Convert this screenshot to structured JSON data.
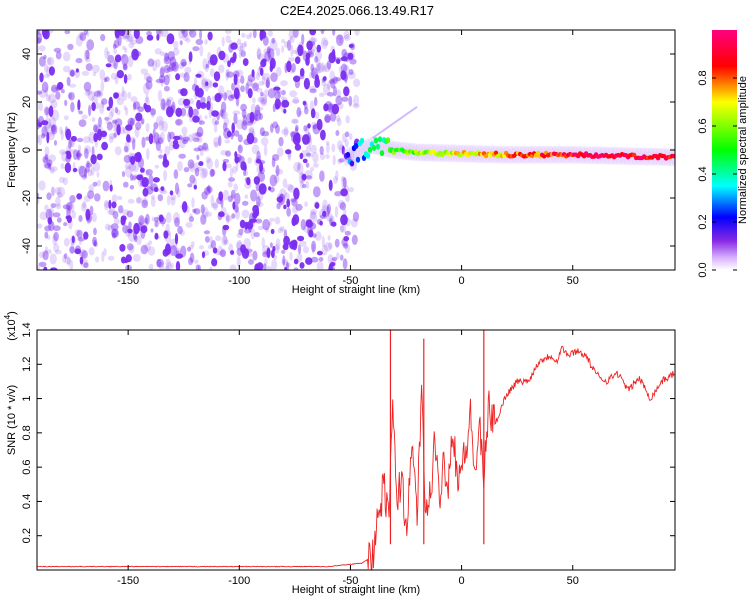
{
  "title": "C2E4.2025.066.13.49.R17",
  "chart_data": [
    {
      "type": "heatmap",
      "xlabel": "Height of straight line (km)",
      "ylabel": "Frequency (Hz)",
      "xlim": [
        -191,
        96
      ],
      "ylim": [
        -50,
        50
      ],
      "x_ticks": [
        -150,
        -100,
        -50,
        0,
        50
      ],
      "y_ticks": [
        -40,
        -20,
        0,
        20,
        40
      ],
      "colorbar": {
        "label": "Normalized spectral amplitude",
        "range": [
          0,
          1
        ],
        "ticks": [
          0.0,
          0.2,
          0.4,
          0.6,
          0.8
        ],
        "colors": [
          "#ffffff",
          "#8a2be2",
          "#0000ff",
          "#00ffff",
          "#00ff00",
          "#ffff00",
          "#ff0000",
          "#ff0080"
        ]
      },
      "noise_region": {
        "x": [
          -191,
          -47
        ],
        "y": [
          -50,
          50
        ],
        "color": "#7b2cf0"
      },
      "signal_track": {
        "x": [
          -52,
          -45,
          -40,
          -30,
          -20,
          0,
          20,
          50,
          96
        ],
        "y": [
          -3,
          0,
          2,
          0,
          -1,
          -1.5,
          -2,
          -2,
          -3
        ],
        "amplitude": [
          0.2,
          0.3,
          0.4,
          0.55,
          0.6,
          0.7,
          0.75,
          0.9,
          0.9
        ]
      }
    },
    {
      "type": "line",
      "xlabel": "Height of straight line (km)",
      "ylabel": "SNR (10 * v/v)",
      "y_multiplier": "(x10",
      "y_multiplier_exp": "4",
      "y_multiplier_close": ")",
      "xlim": [
        -191,
        96
      ],
      "ylim": [
        0,
        1.4
      ],
      "x_ticks": [
        -150,
        -100,
        -50,
        0,
        50
      ],
      "y_ticks": [
        0.2,
        0.4,
        0.6,
        0.8,
        1.0,
        1.2,
        1.4
      ],
      "color": "#ee2222",
      "series": [
        {
          "x": [
            -191,
            -150,
            -100,
            -60,
            -45,
            -40,
            -38,
            -35,
            -33,
            -31,
            -29,
            -27,
            -25,
            -22,
            -20,
            -18,
            -16,
            -14,
            -12,
            -10,
            -8,
            -6,
            -4,
            -2,
            0,
            2,
            4,
            6,
            8,
            10,
            12,
            15,
            20,
            25,
            30,
            35,
            40,
            43,
            45,
            48,
            52,
            56,
            60,
            65,
            70,
            75,
            80,
            85,
            90,
            96
          ],
          "y": [
            0.02,
            0.02,
            0.02,
            0.02,
            0.04,
            0.08,
            0.25,
            0.5,
            0.3,
            0.9,
            0.4,
            0.55,
            0.25,
            0.7,
            0.35,
            1.0,
            0.3,
            0.45,
            0.75,
            0.4,
            0.65,
            0.5,
            0.85,
            0.55,
            0.6,
            0.7,
            0.9,
            0.55,
            0.85,
            0.5,
            0.95,
            0.85,
            1.02,
            1.1,
            1.1,
            1.22,
            1.25,
            1.22,
            1.3,
            1.25,
            1.28,
            1.25,
            1.15,
            1.1,
            1.15,
            1.05,
            1.12,
            1.0,
            1.1,
            1.15
          ]
        }
      ],
      "spikes": [
        {
          "x": -32,
          "y": 1.4
        },
        {
          "x": -17,
          "y": 1.35
        },
        {
          "x": 10,
          "y": 1.4
        }
      ]
    }
  ]
}
